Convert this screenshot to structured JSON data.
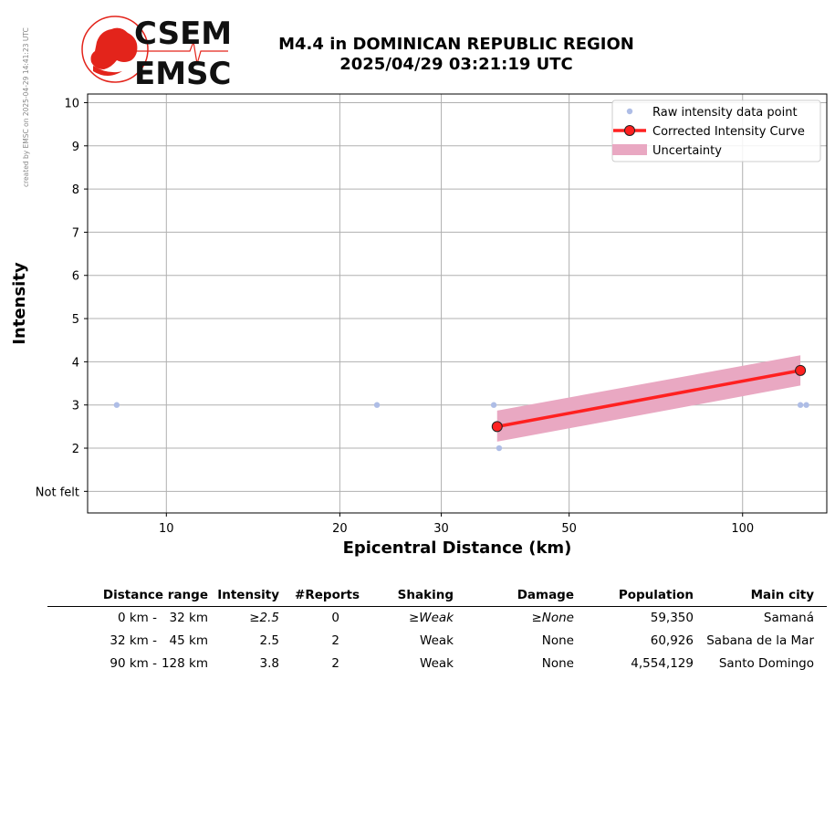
{
  "watermark": "created by EMSC on 2025-04-29 14:41:23 UTC",
  "logo": {
    "top_text": "CSEM",
    "bottom_text": "EMSC",
    "accent": "#e3241b"
  },
  "title": {
    "line1": "M4.4 in DOMINICAN REPUBLIC REGION",
    "line2": "2025/04/29 03:21:19 UTC"
  },
  "chart_data": {
    "type": "line",
    "x_scale": "log",
    "xlabel": "Epicentral Distance (km)",
    "ylabel": "Intensity",
    "xlim": [
      7.3,
      140
    ],
    "ylim": [
      0.5,
      10.2
    ],
    "x_ticks": [
      10,
      20,
      30,
      50,
      100
    ],
    "x_tick_labels": [
      "10",
      "20",
      "30",
      "50",
      "100"
    ],
    "y_ticks": [
      1,
      2,
      3,
      4,
      5,
      6,
      7,
      8,
      9,
      10
    ],
    "y_tick_labels": [
      "Not felt",
      "2",
      "3",
      "4",
      "5",
      "6",
      "7",
      "8",
      "9",
      "10"
    ],
    "grid": true,
    "legend_position": "top-right",
    "series": [
      {
        "name": "Raw intensity data point",
        "type": "scatter",
        "color": "#aebde6",
        "points": [
          [
            8.2,
            3
          ],
          [
            23.2,
            3
          ],
          [
            37,
            3
          ],
          [
            37.8,
            2
          ],
          [
            126,
            3
          ],
          [
            129,
            3
          ]
        ]
      },
      {
        "name": "Corrected Intensity Curve",
        "type": "line",
        "color": "#ff2020",
        "points": [
          [
            37.5,
            2.5
          ],
          [
            126,
            3.8
          ]
        ]
      },
      {
        "name": "Uncertainty",
        "type": "band",
        "color": "#e9a8c2",
        "points": [
          [
            37.5,
            2.15,
            2.87
          ],
          [
            126,
            3.45,
            4.15
          ]
        ]
      }
    ]
  },
  "table": {
    "headers": [
      "Distance range",
      "Intensity",
      "#Reports",
      "Shaking",
      "Damage",
      "Population",
      "Main city"
    ],
    "rows": [
      {
        "range_from": "0 km -",
        "range_to": "32 km",
        "intensity": "≥2.5",
        "reports": "0",
        "shaking": "≥Weak",
        "damage": "≥None",
        "population": "59,350",
        "city": "Samaná",
        "italic": true
      },
      {
        "range_from": "32 km -",
        "range_to": "45 km",
        "intensity": "2.5",
        "reports": "2",
        "shaking": "Weak",
        "damage": "None",
        "population": "60,926",
        "city": "Sabana de la Mar",
        "italic": false
      },
      {
        "range_from": "90 km -",
        "range_to": "128 km",
        "intensity": "3.8",
        "reports": "2",
        "shaking": "Weak",
        "damage": "None",
        "population": "4,554,129",
        "city": "Santo Domingo",
        "italic": false
      }
    ]
  }
}
